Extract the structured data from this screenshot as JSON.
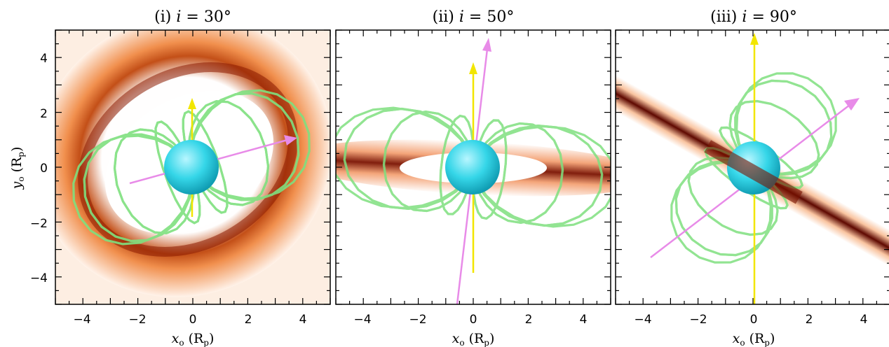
{
  "figure": {
    "panels": [
      {
        "id": "i",
        "title_prefix": "(i)",
        "title_var": "i",
        "title_eq": "=",
        "title_value": "30°",
        "inclination_deg": 30
      },
      {
        "id": "ii",
        "title_prefix": "(ii)",
        "title_var": "i",
        "title_eq": "=",
        "title_value": "50°",
        "inclination_deg": 50
      },
      {
        "id": "iii",
        "title_prefix": "(iii)",
        "title_var": "i",
        "title_eq": "=",
        "title_value": "90°",
        "inclination_deg": 90
      }
    ],
    "x_axis": {
      "label_var": "x",
      "label_sub": "o",
      "label_unit": "(R",
      "label_unit_sub": "p",
      "label_close": ")",
      "range": [
        -5,
        5
      ],
      "tick_labels": [
        "−4",
        "−2",
        "0",
        "2",
        "4"
      ]
    },
    "y_axis": {
      "label_var": "y",
      "label_sub": "o",
      "label_unit": "(R",
      "label_unit_sub": "p",
      "label_close": ")",
      "range": [
        -5,
        5
      ],
      "tick_labels": [
        "4",
        "2",
        "0",
        "−2",
        "−4"
      ]
    },
    "colors": {
      "star": "#35d6e8",
      "field_lines": "#7fe07f",
      "rotation_axis": "#f2e600",
      "magnetic_axis": "#e88be8",
      "disk_dark": "#6a0a00",
      "disk_mid": "#d8551a",
      "disk_light": "#fbd6b8"
    }
  }
}
